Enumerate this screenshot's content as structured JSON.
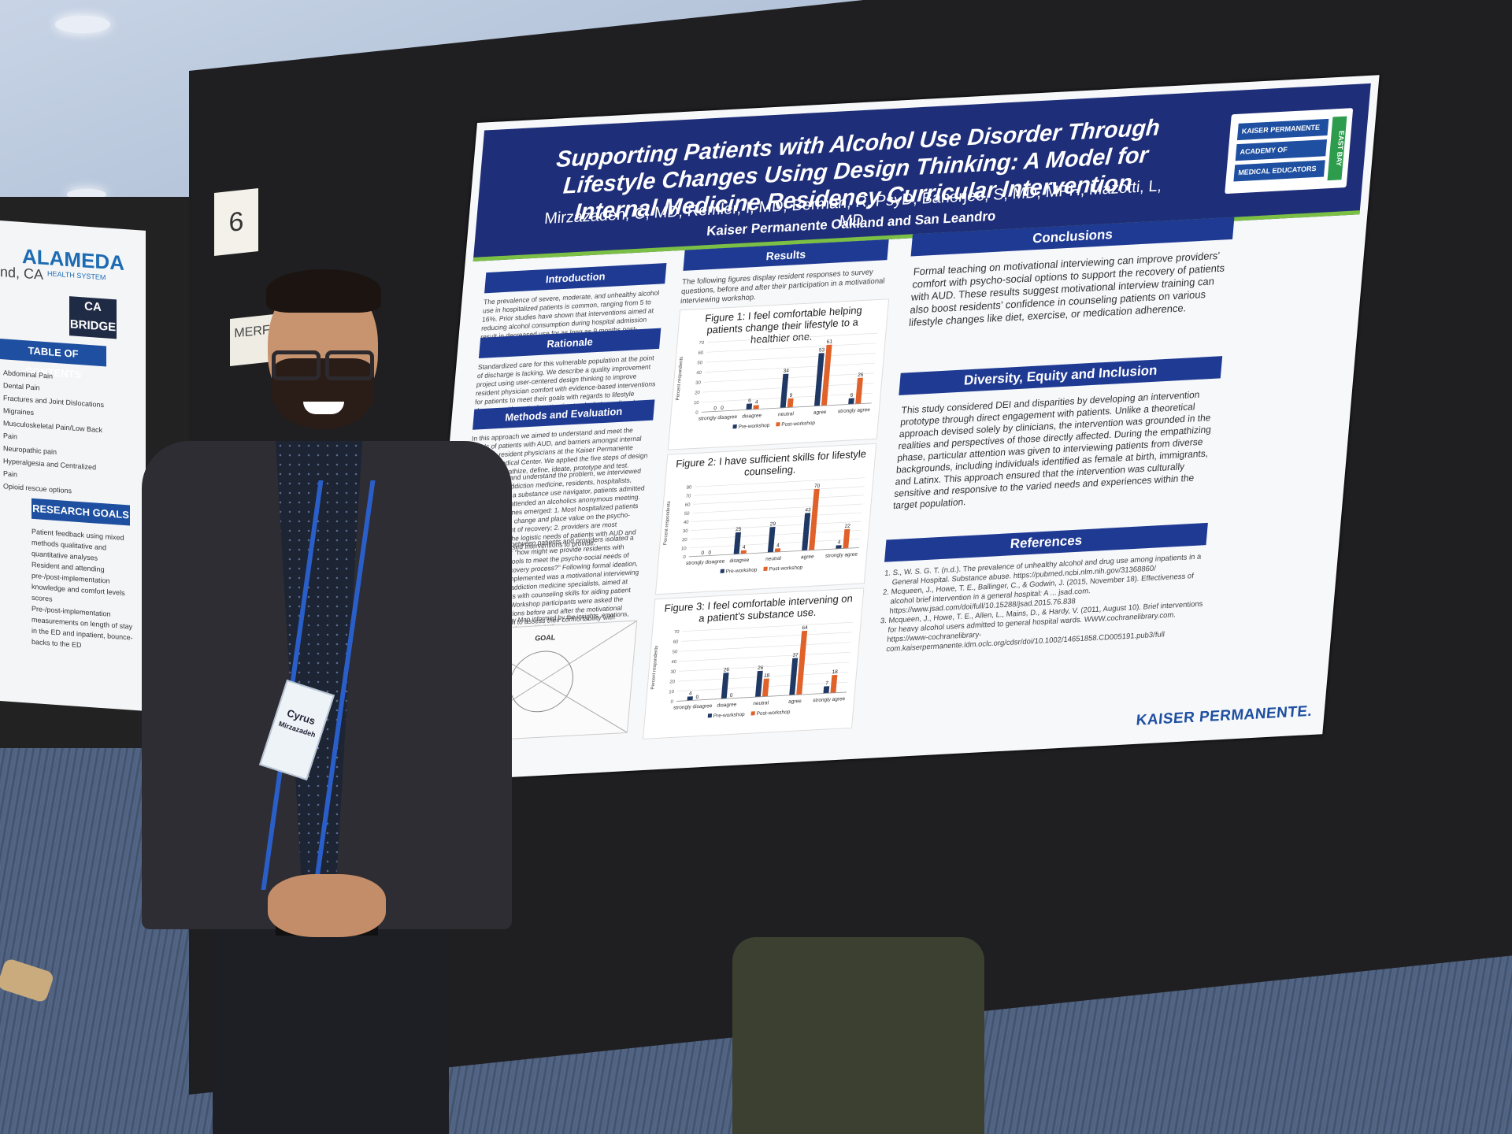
{
  "left_poster": {
    "org": "ALAMEDA",
    "org_sub": "HEALTH SYSTEM",
    "city": "nd, CA",
    "bridge": "CA BRIDGE",
    "toc_title": "TABLE OF CONTENTS",
    "toc_items": [
      "Abdominal Pain",
      "Dental Pain",
      "Fractures and Joint Dislocations",
      "Migraines",
      "Musculoskeletal Pain/Low Back Pain",
      "Neuropathic pain",
      "Hyperalgesia and Centralized Pain",
      "Opioid rescue options"
    ],
    "goals_title": "RESEARCH GOALS",
    "goal_items": [
      "Patient feedback using mixed methods qualitative and quantitative analyses",
      "Resident and attending pre-/post-implementation knowledge and comfort levels scores",
      "Pre-/post-implementation measurements on length of stay in the ED and inpatient, bounce-backs to the ED"
    ]
  },
  "tags": {
    "number": "6",
    "merf": "MERF"
  },
  "poster": {
    "title": "Supporting Patients with Alcohol Use Disorder Through Lifestyle Changes Using Design Thinking: A Model for Internal Medicine Residency Curricular Intervention",
    "authors": "Mirzazadeh, C, MD, Remler, I, MD, Berman, R, PsyD, Banerjee, S, MD, MPH, Mazotti, L, MD",
    "affiliation": "Kaiser Permanente Oakland and San Leandro",
    "logo_rows": [
      "KAISER PERMANENTE",
      "ACADEMY OF",
      "MEDICAL EDUCATORS"
    ],
    "logo_side": "EAST BAY",
    "introduction_head": "Introduction",
    "introduction": "The prevalence of severe, moderate, and unhealthy alcohol use in hospitalized patients is common, ranging from 5 to 16%. Prior studies have shown that interventions aimed at reducing alcohol consumption during hospital admission result in decreased use for as long as 9 months post-discharge.",
    "rationale_head": "Rationale",
    "rationale": "Standardized care for this vulnerable population at the point of discharge is lacking. We describe a quality improvement project using user-centered design thinking to improve resident physician comfort with evidence-based interventions for patients to meet their goals with regards to lifestyle changes, with particular attention to alcohol use disorder (AUD).",
    "methods_head": "Methods and Evaluation",
    "methods_1": "In this approach we aimed to understand and meet the needs of patients with AUD, and barriers amongst internal medicine resident physicians at the Kaiser Permanente Oakland Medical Center. We applied the five steps of design thinking: empathize, define, ideate, prototype and test.",
    "methods_2": "To empathize and understand the problem, we interviewed specialists in addiction medicine, residents, hospitalists, social workers, a substance use navigator, patients admitted with AUD, and attended an alcoholics anonymous meeting. Two salient themes emerged: 1. Most hospitalized patients are motivated to change and place value on the psycho-social component of recovery; 2. providers are most concerned with the logistic needs of patients with AUD and lack evidence-based interventions to provide.",
    "methods_3": "This disconnect between patients and providers isolated a specific question: \"how might we provide residents with evidence-based tools to meet the psycho-social needs of patients in the recovery process?\" Following formal ideation, the intervention implemented was a motivational interviewing workshop, led by addiction medicine specialists, aimed at equipping residents with counseling skills for aiding patient lifestyle changes. Workshop participants were asked the same survey questions before and after the motivational interviewing session to assess their comfortability with supporting patients through making lifestyle changes.",
    "empathy_caption": "Figure 1: An Empathy Map informed by the insights, emotions, and pain points of patients with AUD",
    "empathy_goal": "GOAL",
    "results_head": "Results",
    "results_intro": "The following figures display resident responses to survey questions, before and after their participation in a motivational interviewing workshop.",
    "conclusions_head": "Conclusions",
    "conclusions": "Formal teaching on motivational interviewing can improve providers' comfort with psycho-social options to support the recovery of patients with AUD. These results suggest motivational interview training can also boost residents' confidence in counseling patients on various lifestyle changes like diet, exercise, or medication adherence.",
    "dei_head": "Diversity, Equity and Inclusion",
    "dei": "This study considered DEI and disparities by developing an intervention prototype through direct engagement with patients. Unlike a theoretical approach devised solely by clinicians, the intervention was grounded in the realities and perspectives of those directly affected. During the empathizing phase, particular attention was given to interviewing patients from diverse backgrounds, including individuals identified as female at birth, immigrants, and Latinx. This approach ensured that the intervention was culturally sensitive and responsive to the varied needs and experiences within the target population.",
    "references_head": "References",
    "references": [
      "S., W. S. G. T. (n.d.). The prevalence of unhealthy alcohol and drug use among inpatients in a General Hospital. Substance abuse. https://pubmed.ncbi.nlm.nih.gov/31368860/",
      "Mcqueen, J., Howe, T. E., Ballinger, C., & Godwin, J. (2015, November 18). Effectiveness of alcohol brief intervention in a general hospital: A ... jsad.com. https://www.jsad.com/doi/full/10.15288/jsad.2015.76.838",
      "Mcqueen, J., Howe, T. E., Allen, L., Mains, D., & Hardy, V. (2011, August 10). Brief interventions for heavy alcohol users admitted to general hospital wards. WWW.cochranelibrary.com. https://www-cochranelibrary-com.kaiserpermanente.idm.oclc.org/cdsr/doi/10.1002/14651858.CD005191.pub3/full"
    ],
    "footer_brand": "KAISER PERMANENTE."
  },
  "chart_data": [
    {
      "type": "bar",
      "title": "Figure 1: I feel comfortable helping patients change their lifestyle to a healthier one.",
      "ylabel": "Percent respondents",
      "ylim": [
        0,
        70
      ],
      "yticks": [
        0,
        10,
        20,
        30,
        40,
        50,
        60,
        70
      ],
      "categories": [
        "strongly disagree",
        "disagree",
        "neutral",
        "agree",
        "strongly agree"
      ],
      "series": [
        {
          "name": "Pre-workshop",
          "values": [
            0,
            6,
            34,
            53,
            6
          ]
        },
        {
          "name": "Post-workshop",
          "values": [
            0,
            4,
            9,
            61,
            26
          ]
        }
      ]
    },
    {
      "type": "bar",
      "title": "Figure 2: I have sufficient skills for lifestyle counseling.",
      "ylabel": "Percent respondents",
      "ylim": [
        0,
        80
      ],
      "yticks": [
        0,
        10,
        20,
        30,
        40,
        50,
        60,
        70,
        80
      ],
      "categories": [
        "strongly disagree",
        "disagree",
        "neutral",
        "agree",
        "strongly agree"
      ],
      "series": [
        {
          "name": "Pre-workshop",
          "values": [
            0,
            25,
            29,
            43,
            4
          ]
        },
        {
          "name": "Post-workshop",
          "values": [
            0,
            4,
            4,
            70,
            22
          ]
        }
      ]
    },
    {
      "type": "bar",
      "title": "Figure 3: I feel comfortable intervening on a patient's substance use.",
      "ylabel": "Percent respondents",
      "ylim": [
        0,
        70
      ],
      "yticks": [
        0,
        10,
        20,
        30,
        40,
        50,
        60,
        70
      ],
      "categories": [
        "strongly disagree",
        "disagree",
        "neutral",
        "agree",
        "strongly agree"
      ],
      "series": [
        {
          "name": "Pre-workshop",
          "values": [
            4,
            26,
            26,
            37,
            7
          ]
        },
        {
          "name": "Post-workshop",
          "values": [
            0,
            0,
            18,
            64,
            18
          ]
        }
      ]
    }
  ],
  "colors": {
    "pre": "#1f3864",
    "post": "#e0622a",
    "banner": "#1f2e78",
    "section": "#1f3a93"
  },
  "badge": {
    "first": "Cyrus",
    "last": "Mirzazadeh"
  }
}
